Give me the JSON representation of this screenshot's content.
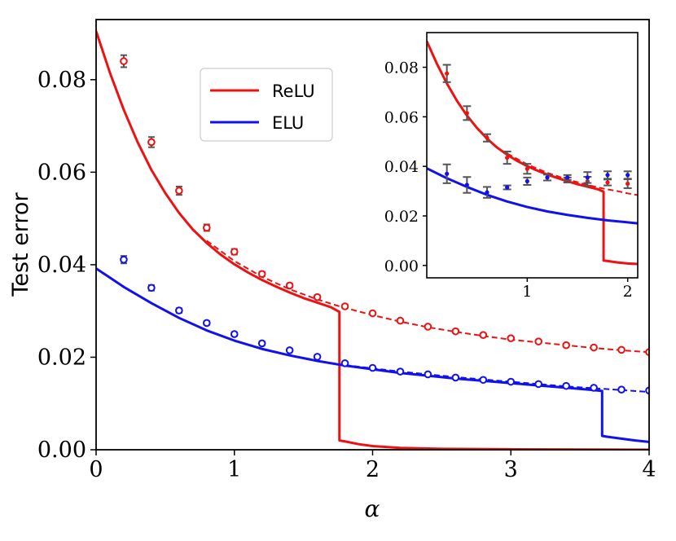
{
  "chart_data": [
    {
      "panel": "main",
      "type": "line",
      "ylabel": "Test error",
      "xlabel": "α",
      "xlim": [
        0,
        4
      ],
      "ylim": [
        0,
        0.093
      ],
      "xticks": [
        0,
        1,
        2,
        3,
        4
      ],
      "xtick_labels": [
        "0",
        "1",
        "2",
        "3",
        "4"
      ],
      "yticks": [
        0.0,
        0.02,
        0.04,
        0.06,
        0.08
      ],
      "ytick_labels": [
        "0.00",
        "0.02",
        "0.04",
        "0.06",
        "0.08"
      ],
      "grid": false,
      "legend": {
        "placement": "upper-center",
        "entries": [
          "ReLU",
          "ELU"
        ]
      },
      "series": [
        {
          "name": "ReLU",
          "color": "#ee1111",
          "solid": {
            "x": [
              0,
              0.1,
              0.2,
              0.3,
              0.4,
              0.5,
              0.6,
              0.7,
              0.8,
              0.9,
              1.0,
              1.1,
              1.2,
              1.3,
              1.4,
              1.5,
              1.6,
              1.7,
              1.76,
              1.76,
              1.8,
              1.9,
              2.0,
              2.2,
              2.5,
              3.0,
              4.0
            ],
            "y": [
              0.0905,
              0.0815,
              0.0735,
              0.0665,
              0.0605,
              0.0555,
              0.0512,
              0.0476,
              0.0447,
              0.0422,
              0.0401,
              0.0383,
              0.0367,
              0.0353,
              0.034,
              0.0328,
              0.0318,
              0.0308,
              0.0298,
              0.002,
              0.0018,
              0.0012,
              0.0008,
              0.0004,
              0.0002,
              0.0001,
              0.0
            ]
          },
          "dashed": {
            "x": [
              0.8,
              1.0,
              1.2,
              1.4,
              1.6,
              1.76,
              2.0,
              2.2,
              2.4,
              2.6,
              2.8,
              3.0,
              3.2,
              3.4,
              3.6,
              3.8,
              4.0
            ],
            "y": [
              0.0452,
              0.0408,
              0.0374,
              0.0347,
              0.0325,
              0.031,
              0.0291,
              0.0277,
              0.0265,
              0.0255,
              0.0246,
              0.0238,
              0.0232,
              0.0226,
              0.022,
              0.0215,
              0.0211
            ]
          },
          "points": {
            "x": [
              0.2,
              0.4,
              0.6,
              0.8,
              1.0,
              1.2,
              1.4,
              1.6,
              1.8,
              2.0,
              2.2,
              2.4,
              2.6,
              2.8,
              3.0,
              3.2,
              3.4,
              3.6,
              3.8,
              4.0
            ],
            "y": [
              0.084,
              0.0665,
              0.056,
              0.048,
              0.0428,
              0.038,
              0.0355,
              0.033,
              0.031,
              0.0295,
              0.0279,
              0.0266,
              0.0256,
              0.0248,
              0.0241,
              0.0234,
              0.0226,
              0.0221,
              0.0216,
              0.0211
            ],
            "err": [
              0.0013,
              0.0011,
              0.0009,
              0.0007,
              0.0006,
              0.0005,
              0.0004,
              0.0004,
              0.0004,
              0.0003,
              0.0003,
              0.0003,
              0.0003,
              0.0003,
              0.0003,
              0.0003,
              0.0003,
              0.0003,
              0.0003,
              0.0003
            ]
          }
        },
        {
          "name": "ELU",
          "color": "#1111ee",
          "solid": {
            "x": [
              0,
              0.2,
              0.4,
              0.6,
              0.8,
              1.0,
              1.2,
              1.4,
              1.6,
              1.8,
              2.0,
              2.2,
              2.4,
              2.6,
              2.8,
              3.0,
              3.2,
              3.4,
              3.6,
              3.66,
              3.66,
              3.7,
              3.8,
              3.9,
              4.0
            ],
            "y": [
              0.0392,
              0.0352,
              0.0317,
              0.0285,
              0.0258,
              0.0236,
              0.0218,
              0.0204,
              0.0192,
              0.0182,
              0.0174,
              0.0166,
              0.016,
              0.0154,
              0.0149,
              0.0144,
              0.0139,
              0.0134,
              0.0129,
              0.0127,
              0.003,
              0.0028,
              0.0024,
              0.002,
              0.0017
            ]
          },
          "dashed": {
            "x": [
              1.8,
              2.0,
              2.2,
              2.4,
              2.6,
              2.8,
              3.0,
              3.2,
              3.4,
              3.6,
              3.8,
              4.0
            ],
            "y": [
              0.0183,
              0.0176,
              0.0169,
              0.0163,
              0.0157,
              0.0152,
              0.0147,
              0.0142,
              0.0137,
              0.0133,
              0.0129,
              0.0125
            ]
          },
          "points": {
            "x": [
              0.2,
              0.4,
              0.6,
              0.8,
              1.0,
              1.2,
              1.4,
              1.6,
              1.8,
              2.0,
              2.2,
              2.4,
              2.6,
              2.8,
              3.0,
              3.2,
              3.4,
              3.6,
              3.8,
              4.0
            ],
            "y": [
              0.0411,
              0.035,
              0.0301,
              0.0274,
              0.025,
              0.023,
              0.0215,
              0.0201,
              0.0187,
              0.0177,
              0.0169,
              0.0163,
              0.0156,
              0.0151,
              0.0147,
              0.0142,
              0.0138,
              0.0134,
              0.013,
              0.0128
            ],
            "err": [
              0.0008,
              0.0006,
              0.0005,
              0.0004,
              0.0004,
              0.0004,
              0.0003,
              0.0003,
              0.0003,
              0.0003,
              0.0003,
              0.0003,
              0.0003,
              0.0003,
              0.0003,
              0.0003,
              0.0003,
              0.0003,
              0.0003,
              0.0003
            ]
          }
        }
      ]
    },
    {
      "panel": "inset",
      "type": "line",
      "xlim": [
        0,
        2.1
      ],
      "ylim": [
        -0.005,
        0.094
      ],
      "xticks": [
        1,
        2
      ],
      "xtick_labels": [
        "1",
        "2"
      ],
      "yticks": [
        0.0,
        0.02,
        0.04,
        0.06,
        0.08
      ],
      "ytick_labels": [
        "0.00",
        "0.02",
        "0.04",
        "0.06",
        "0.08"
      ],
      "grid": false,
      "series": [
        {
          "name": "ReLU",
          "color": "#ee1111",
          "solid": {
            "x": [
              0,
              0.1,
              0.2,
              0.3,
              0.4,
              0.5,
              0.6,
              0.7,
              0.8,
              0.9,
              1.0,
              1.1,
              1.2,
              1.3,
              1.4,
              1.5,
              1.6,
              1.7,
              1.76,
              1.76,
              1.8,
              1.9,
              2.0,
              2.1
            ],
            "y": [
              0.0905,
              0.0815,
              0.0735,
              0.0665,
              0.0605,
              0.0555,
              0.0512,
              0.0476,
              0.0447,
              0.0422,
              0.0401,
              0.0383,
              0.0367,
              0.0353,
              0.034,
              0.0328,
              0.0318,
              0.0308,
              0.0298,
              0.002,
              0.0018,
              0.0012,
              0.0008,
              0.0006
            ]
          },
          "dashed": {
            "x": [
              0.8,
              1.0,
              1.2,
              1.4,
              1.6,
              1.76,
              1.9,
              2.0,
              2.1
            ],
            "y": [
              0.0452,
              0.0408,
              0.0374,
              0.0347,
              0.0325,
              0.031,
              0.03,
              0.0291,
              0.0284
            ]
          },
          "points": {
            "x": [
              0.2,
              0.4,
              0.6,
              0.8,
              1.0,
              1.2,
              1.4,
              1.6,
              1.8,
              2.0
            ],
            "y": [
              0.0775,
              0.0615,
              0.0515,
              0.0435,
              0.039,
              0.0355,
              0.0345,
              0.034,
              0.0335,
              0.033
            ],
            "err": [
              0.0035,
              0.0028,
              0.0015,
              0.0025,
              0.002,
              0.0012,
              0.001,
              0.0018,
              0.0012,
              0.0018
            ]
          }
        },
        {
          "name": "ELU",
          "color": "#1111ee",
          "solid": {
            "x": [
              0,
              0.2,
              0.4,
              0.6,
              0.8,
              1.0,
              1.2,
              1.4,
              1.6,
              1.8,
              2.0,
              2.1
            ],
            "y": [
              0.0392,
              0.0352,
              0.0317,
              0.0285,
              0.0258,
              0.0236,
              0.0218,
              0.0204,
              0.0192,
              0.0182,
              0.0174,
              0.017
            ]
          },
          "dashed": {
            "x": [],
            "y": []
          },
          "points": {
            "x": [
              0.2,
              0.4,
              0.6,
              0.8,
              1.0,
              1.2,
              1.4,
              1.6,
              1.8,
              2.0
            ],
            "y": [
              0.037,
              0.0325,
              0.0295,
              0.0315,
              0.034,
              0.0355,
              0.0355,
              0.0355,
              0.0365,
              0.0365
            ],
            "err": [
              0.0038,
              0.0032,
              0.0022,
              0.0008,
              0.0015,
              0.0012,
              0.001,
              0.0022,
              0.0015,
              0.0015
            ]
          }
        }
      ]
    }
  ]
}
